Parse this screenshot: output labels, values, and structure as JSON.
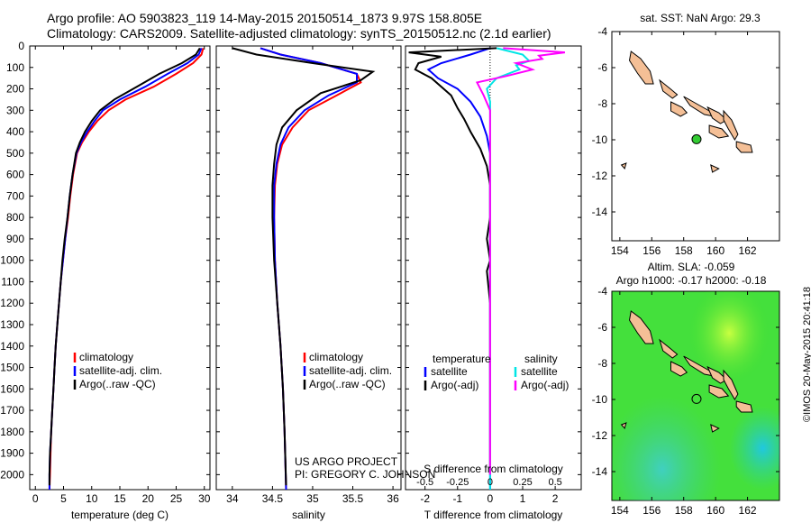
{
  "titles": {
    "line1": "Argo profile: AO 5903823_119 14-May-2015 20150514_1873 9.97S 158.805E",
    "line2": "Climatology: CARS2009. Satellite-adjusted climatology: synTS_20150512.nc (2.1d earlier)"
  },
  "credit": "©IMOS 20-May-2015 20:41:18",
  "colors": {
    "climatology": "#ff0000",
    "satellite": "#0000ff",
    "argo": "#000000",
    "satellite_salinity": "#00e5e5",
    "argo_salinity": "#ff00ff"
  },
  "chart_data": [
    {
      "type": "line",
      "id": "temperature",
      "xlabel": "temperature (deg C)",
      "xlim": [
        -1,
        31
      ],
      "ylim": [
        2070,
        0
      ],
      "xticks": [
        0,
        5,
        10,
        15,
        20,
        25,
        30
      ],
      "yticks": [
        0,
        100,
        200,
        300,
        400,
        500,
        600,
        700,
        800,
        900,
        1000,
        1100,
        1200,
        1300,
        1400,
        1500,
        1600,
        1700,
        1800,
        1900,
        2000
      ],
      "legend": [
        "climatology",
        "satellite-adj. clim.",
        "Argo(..raw -QC)"
      ],
      "series": [
        {
          "name": "climatology",
          "color": "#ff0000",
          "points": [
            [
              29.8,
              10
            ],
            [
              29.5,
              40
            ],
            [
              28,
              80
            ],
            [
              25,
              130
            ],
            [
              21,
              190
            ],
            [
              16,
              250
            ],
            [
              13,
              300
            ],
            [
              11,
              350
            ],
            [
              9.5,
              400
            ],
            [
              8.3,
              450
            ],
            [
              7.4,
              500
            ],
            [
              6.7,
              600
            ],
            [
              6.2,
              700
            ],
            [
              5.8,
              800
            ],
            [
              5.3,
              900
            ],
            [
              4.9,
              1000
            ],
            [
              4.5,
              1100
            ],
            [
              4.2,
              1200
            ],
            [
              3.9,
              1300
            ],
            [
              3.6,
              1400
            ],
            [
              3.4,
              1500
            ],
            [
              3.2,
              1600
            ],
            [
              3.0,
              1700
            ],
            [
              2.8,
              1800
            ],
            [
              2.7,
              1900
            ],
            [
              2.6,
              2000
            ],
            [
              2.5,
              2070
            ]
          ]
        },
        {
          "name": "satellite-adj. clim.",
          "color": "#0000ff",
          "points": [
            [
              29.5,
              10
            ],
            [
              29,
              40
            ],
            [
              27,
              80
            ],
            [
              23.5,
              130
            ],
            [
              19.5,
              190
            ],
            [
              15,
              250
            ],
            [
              12,
              300
            ],
            [
              10.5,
              350
            ],
            [
              9.2,
              400
            ],
            [
              8.1,
              450
            ],
            [
              7.3,
              500
            ],
            [
              6.6,
              600
            ],
            [
              6.1,
              700
            ],
            [
              5.7,
              800
            ],
            [
              5.3,
              900
            ],
            [
              4.9,
              1000
            ],
            [
              4.5,
              1100
            ],
            [
              4.2,
              1200
            ],
            [
              3.9,
              1300
            ],
            [
              3.6,
              1400
            ],
            [
              3.4,
              1500
            ],
            [
              3.2,
              1600
            ],
            [
              3.0,
              1700
            ],
            [
              2.8,
              1800
            ],
            [
              2.6,
              1900
            ],
            [
              2.5,
              2000
            ],
            [
              2.5,
              2070
            ]
          ]
        },
        {
          "name": "Argo(..raw -QC)",
          "color": "#000000",
          "points": [
            [
              29.2,
              10
            ],
            [
              28.5,
              40
            ],
            [
              26,
              80
            ],
            [
              22,
              130
            ],
            [
              18,
              190
            ],
            [
              14,
              250
            ],
            [
              11.5,
              300
            ],
            [
              10,
              350
            ],
            [
              8.8,
              400
            ],
            [
              7.9,
              450
            ],
            [
              7.2,
              500
            ],
            [
              6.6,
              600
            ],
            [
              6.1,
              700
            ],
            [
              5.7,
              800
            ],
            [
              5.2,
              900
            ],
            [
              4.8,
              1000
            ],
            [
              4.5,
              1100
            ],
            [
              4.2,
              1200
            ],
            [
              3.9,
              1300
            ],
            [
              3.6,
              1400
            ],
            [
              3.4,
              1500
            ],
            [
              3.2,
              1600
            ],
            [
              3.0,
              1700
            ],
            [
              2.8,
              1800
            ],
            [
              2.6,
              1900
            ],
            [
              2.5,
              2000
            ],
            [
              2.5,
              2050
            ]
          ]
        }
      ]
    },
    {
      "type": "line",
      "id": "salinity",
      "xlabel": "salinity",
      "xlim": [
        33.8,
        36.1
      ],
      "ylim": [
        2070,
        0
      ],
      "xticks": [
        34,
        34.5,
        35,
        35.5,
        36
      ],
      "legend": [
        "climatology",
        "satellite-adj. clim.",
        "Argo(..raw -QC)"
      ],
      "series": [
        {
          "name": "climatology",
          "color": "#ff0000",
          "points": [
            [
              34.35,
              10
            ],
            [
              34.6,
              40
            ],
            [
              35.1,
              80
            ],
            [
              35.55,
              130
            ],
            [
              35.6,
              170
            ],
            [
              35.3,
              230
            ],
            [
              34.95,
              300
            ],
            [
              34.75,
              380
            ],
            [
              34.62,
              460
            ],
            [
              34.56,
              550
            ],
            [
              34.53,
              650
            ],
            [
              34.52,
              800
            ],
            [
              34.53,
              1000
            ],
            [
              34.56,
              1200
            ],
            [
              34.6,
              1400
            ],
            [
              34.63,
              1600
            ],
            [
              34.65,
              1800
            ],
            [
              34.67,
              2070
            ]
          ]
        },
        {
          "name": "satellite-adj. clim.",
          "color": "#0000ff",
          "points": [
            [
              34.35,
              10
            ],
            [
              34.6,
              40
            ],
            [
              35.1,
              80
            ],
            [
              35.55,
              130
            ],
            [
              35.55,
              170
            ],
            [
              35.2,
              230
            ],
            [
              34.9,
              300
            ],
            [
              34.7,
              380
            ],
            [
              34.6,
              460
            ],
            [
              34.55,
              550
            ],
            [
              34.52,
              650
            ],
            [
              34.52,
              800
            ],
            [
              34.53,
              1000
            ],
            [
              34.56,
              1200
            ],
            [
              34.6,
              1400
            ],
            [
              34.63,
              1600
            ],
            [
              34.65,
              1800
            ],
            [
              34.67,
              2070
            ]
          ]
        },
        {
          "name": "Argo(..raw -QC)",
          "color": "#000000",
          "points": [
            [
              34.0,
              10
            ],
            [
              34.3,
              40
            ],
            [
              35.0,
              80
            ],
            [
              35.75,
              120
            ],
            [
              35.6,
              160
            ],
            [
              35.1,
              220
            ],
            [
              34.8,
              300
            ],
            [
              34.62,
              380
            ],
            [
              34.55,
              460
            ],
            [
              34.52,
              550
            ],
            [
              34.5,
              650
            ],
            [
              34.5,
              800
            ],
            [
              34.52,
              1000
            ],
            [
              34.56,
              1200
            ],
            [
              34.6,
              1400
            ],
            [
              34.63,
              1600
            ],
            [
              34.65,
              1800
            ],
            [
              34.67,
              2050
            ]
          ]
        }
      ]
    },
    {
      "type": "line",
      "id": "differences",
      "xlabel": "T difference from climatology",
      "x2label": "S difference from climatology",
      "xlim": [
        -2.6,
        2.8
      ],
      "ylim": [
        2070,
        0
      ],
      "xticks": [
        -2,
        -1,
        0,
        1,
        2
      ],
      "x2ticks": [
        -0.5,
        -0.25,
        0,
        0.25,
        0.5
      ],
      "zero_line": true,
      "legend_groups": {
        "temperature": [
          "satellite",
          "Argo(-adj)"
        ],
        "salinity": [
          "satellite",
          "Argo(-adj)"
        ]
      },
      "series": [
        {
          "name": "satellite",
          "group": "temperature",
          "color": "#0000ff",
          "points": [
            [
              0,
              10
            ],
            [
              -0.6,
              40
            ],
            [
              -1.5,
              80
            ],
            [
              -1.9,
              110
            ],
            [
              -1.6,
              150
            ],
            [
              -1.0,
              200
            ],
            [
              -0.6,
              260
            ],
            [
              -0.3,
              330
            ],
            [
              -0.1,
              420
            ],
            [
              0,
              500
            ],
            [
              0,
              700
            ],
            [
              0,
              1000
            ],
            [
              0,
              1500
            ],
            [
              0,
              2070
            ]
          ]
        },
        {
          "name": "Argo(-adj)",
          "group": "temperature",
          "color": "#000000",
          "points": [
            [
              0.2,
              10
            ],
            [
              -2.5,
              30
            ],
            [
              -1.5,
              50
            ],
            [
              -2.2,
              80
            ],
            [
              -2.3,
              110
            ],
            [
              -1.8,
              150
            ],
            [
              -1.2,
              230
            ],
            [
              -1.0,
              290
            ],
            [
              -0.8,
              340
            ],
            [
              -0.6,
              400
            ],
            [
              -0.3,
              480
            ],
            [
              -0.1,
              560
            ],
            [
              0.0,
              650
            ],
            [
              0.0,
              800
            ],
            [
              -0.1,
              900
            ],
            [
              0.0,
              1000
            ],
            [
              -0.1,
              1050
            ],
            [
              0.0,
              1200
            ],
            [
              0.0,
              1500
            ],
            [
              0.0,
              2000
            ]
          ]
        },
        {
          "name": "satellite",
          "group": "salinity",
          "color": "#00e5e5",
          "points": [
            [
              0.2,
              10
            ],
            [
              1.0,
              40
            ],
            [
              1.2,
              70
            ],
            [
              0.8,
              90
            ],
            [
              0.9,
              110
            ],
            [
              0.2,
              150
            ],
            [
              -0.1,
              200
            ],
            [
              0.0,
              260
            ],
            [
              0.0,
              400
            ],
            [
              0.0,
              700
            ],
            [
              0.0,
              1000
            ],
            [
              0.0,
              1500
            ],
            [
              0.0,
              2070
            ]
          ]
        },
        {
          "name": "Argo(-adj)",
          "group": "salinity",
          "color": "#ff00ff",
          "points": [
            [
              0.4,
              10
            ],
            [
              2.3,
              30
            ],
            [
              1.5,
              45
            ],
            [
              1.6,
              60
            ],
            [
              0.8,
              80
            ],
            [
              1.3,
              110
            ],
            [
              0.5,
              140
            ],
            [
              -0.4,
              170
            ],
            [
              -0.2,
              230
            ],
            [
              0.0,
              300
            ],
            [
              0.0,
              400
            ],
            [
              0.0,
              700
            ],
            [
              0.0,
              1000
            ],
            [
              0.0,
              1500
            ],
            [
              0.0,
              2000
            ]
          ]
        }
      ]
    },
    {
      "type": "map",
      "id": "sst-map",
      "title": "sat. SST: NaN Argo: 29.3",
      "xlim": [
        153.5,
        164.0
      ],
      "ylim": [
        -15.6,
        -4.0
      ],
      "xticks": [
        154,
        156,
        158,
        160,
        162
      ],
      "yticks": [
        -4,
        -6,
        -8,
        -10,
        -12,
        -14
      ],
      "argo_position": [
        158.805,
        -9.97
      ],
      "marker_color": "#33cc33",
      "land_color": "#f4bf96"
    },
    {
      "type": "map",
      "id": "sla-map",
      "title_line1": "Altim. SLA: -0.059",
      "title_line2": "Argo h1000: -0.17 h2000: -0.18",
      "xlim": [
        153.5,
        164.0
      ],
      "ylim": [
        -15.6,
        -4.0
      ],
      "xticks": [
        154,
        156,
        158,
        160,
        162
      ],
      "yticks": [
        -4,
        -6,
        -8,
        -10,
        -12,
        -14
      ],
      "argo_position": [
        158.805,
        -9.97
      ],
      "land_color": "#f4bf96"
    }
  ],
  "annotations": {
    "project_line1": "US ARGO PROJECT",
    "project_line2": "PI: GREGORY C. JOHNSON"
  }
}
